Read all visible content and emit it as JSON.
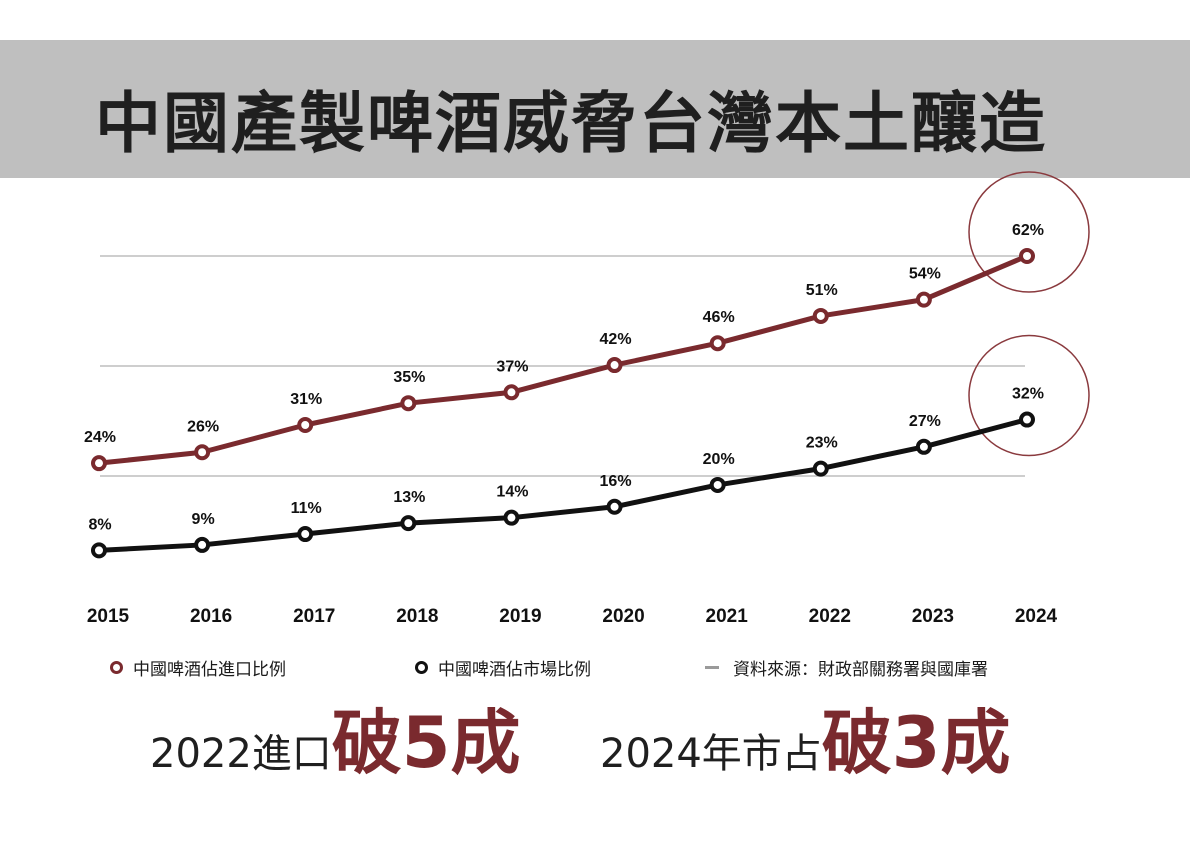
{
  "title": "中國產製啤酒威脅台灣本土釀造",
  "colors": {
    "import": "#7a2a2e",
    "market": "#111111",
    "grid": "#bdbdbd",
    "banner": "#bfbfbf"
  },
  "chart_data": {
    "type": "line",
    "x": [
      "2015",
      "2016",
      "2017",
      "2018",
      "2019",
      "2020",
      "2021",
      "2022",
      "2023",
      "2024"
    ],
    "series": [
      {
        "name": "中國啤酒佔進口比例",
        "values": [
          24,
          26,
          31,
          35,
          37,
          42,
          46,
          51,
          54,
          62
        ],
        "labels": [
          "24%",
          "26%",
          "31%",
          "35%",
          "37%",
          "42%",
          "46%",
          "51%",
          "54%",
          "62%"
        ]
      },
      {
        "name": "中國啤酒佔市場比例",
        "values": [
          8,
          9,
          11,
          13,
          14,
          16,
          20,
          23,
          27,
          32
        ],
        "labels": [
          "8%",
          "9%",
          "11%",
          "13%",
          "14%",
          "16%",
          "20%",
          "23%",
          "27%",
          "32%"
        ]
      }
    ],
    "highlight_year": "2024",
    "grid": true
  },
  "legend": {
    "import_label": "中國啤酒佔進口比例",
    "market_label": "中國啤酒佔市場比例",
    "source_label": "資料來源：財政部關務署與國庫署"
  },
  "bottom": {
    "part1_small": "2022進口",
    "part1_big": "破5成",
    "part2_small": "2024年市占",
    "part2_big": "破3成"
  }
}
